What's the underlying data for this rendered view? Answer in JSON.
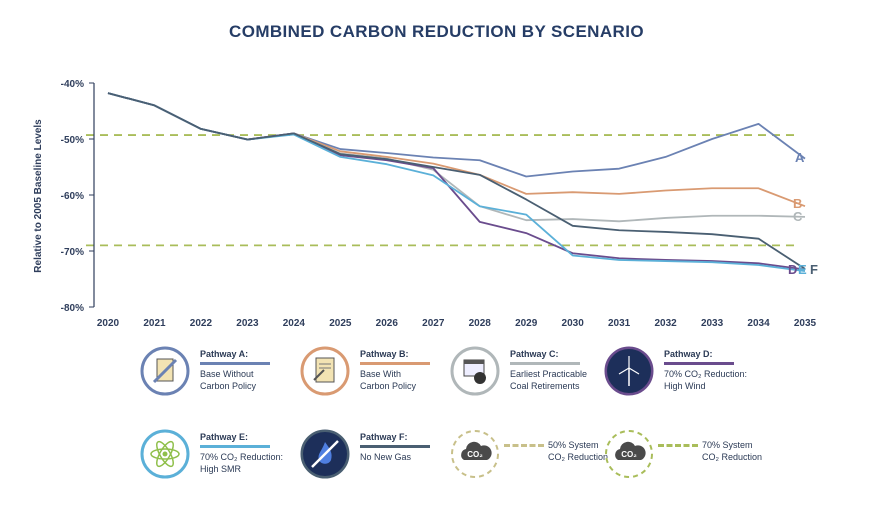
{
  "title": "COMBINED CARBON REDUCTION BY SCENARIO",
  "chart_data": {
    "type": "line",
    "title": "COMBINED CARBON REDUCTION BY SCENARIO",
    "ylabel": "Relative to 2005 Baseline Levels",
    "xlabel": "",
    "x": [
      2020,
      2021,
      2022,
      2023,
      2024,
      2025,
      2026,
      2027,
      2028,
      2029,
      2030,
      2031,
      2032,
      2033,
      2034,
      2035
    ],
    "ylim": [
      -80,
      -40
    ],
    "yticks": [
      -40,
      -50,
      -60,
      -70,
      -80
    ],
    "ytick_labels": [
      "-40%",
      "-50%",
      "-60%",
      "-70%",
      "-80%"
    ],
    "series": [
      {
        "name": "A",
        "color": "#6b82b3",
        "values": [
          -41.8,
          -44,
          -48.2,
          -50.1,
          -49,
          -51.8,
          -52.5,
          -53.3,
          -53.8,
          -56.7,
          -55.8,
          -55.3,
          -53.2,
          -50,
          -47.3,
          -53.5
        ]
      },
      {
        "name": "B",
        "color": "#d99a72",
        "values": [
          -41.8,
          -44,
          -48.2,
          -50.1,
          -49,
          -52.2,
          -53.2,
          -54.4,
          -56.4,
          -59.8,
          -59.5,
          -59.8,
          -59.2,
          -58.8,
          -58.8,
          -62
        ]
      },
      {
        "name": "C",
        "color": "#b0b7b9",
        "values": [
          -41.8,
          -44,
          -48.2,
          -50.1,
          -49,
          -52.6,
          -53.5,
          -55.5,
          -62,
          -64.5,
          -64.3,
          -64.7,
          -64.1,
          -63.7,
          -63.7,
          -63.9
        ]
      },
      {
        "name": "D",
        "color": "#6a4c8d",
        "values": [
          -41.8,
          -44,
          -48.2,
          -50.1,
          -49,
          -52.9,
          -53.8,
          -55.2,
          -64.8,
          -66.8,
          -70.4,
          -71.3,
          -71.6,
          -71.8,
          -72.2,
          -73.3
        ]
      },
      {
        "name": "E",
        "color": "#5bb0d8",
        "values": [
          -41.8,
          -44,
          -48.2,
          -50.1,
          -49.2,
          -53.2,
          -54.5,
          -56.5,
          -62,
          -63.5,
          -70.8,
          -71.6,
          -71.8,
          -72,
          -72.5,
          -73.6
        ]
      },
      {
        "name": "F",
        "color": "#4a5f72",
        "values": [
          -41.8,
          -44,
          -48.2,
          -50.1,
          -49,
          -52.7,
          -53.6,
          -55,
          -56.4,
          -60.8,
          -65.5,
          -66.3,
          -66.6,
          -67,
          -67.8,
          -73.2
        ]
      }
    ],
    "reference_lines": [
      {
        "value": -49.3,
        "color": "#a9bd5a",
        "style": "dashed"
      },
      {
        "value": -69,
        "color": "#a9bd5a",
        "style": "dashed"
      }
    ],
    "end_labels": [
      {
        "text": "A",
        "color": "#6b82b3"
      },
      {
        "text": "B",
        "color": "#d99a72"
      },
      {
        "text": "C",
        "color": "#b0b7b9"
      },
      {
        "text": "D",
        "color": "#6a4c8d"
      },
      {
        "text": "E",
        "color": "#5bb0d8"
      },
      {
        "text": "F",
        "color": "#4a5f72"
      }
    ]
  },
  "legend": [
    {
      "id": "a",
      "name": "Pathway A:",
      "desc": "Base Without\nCarbon Policy",
      "color": "#6b82b3",
      "icon": "no-carbon-policy-icon",
      "dashed": false
    },
    {
      "id": "b",
      "name": "Pathway B:",
      "desc": "Base With\nCarbon Policy",
      "color": "#d99a72",
      "icon": "carbon-policy-document-icon",
      "dashed": false
    },
    {
      "id": "c",
      "name": "Pathway C:",
      "desc": "Earliest Practicable\nCoal Retirements",
      "color": "#b0b7b9",
      "icon": "calendar-coal-icon",
      "dashed": false
    },
    {
      "id": "d",
      "name": "Pathway D:",
      "desc": "70% CO₂ Reduction:\nHigh Wind",
      "color": "#6a4c8d",
      "icon": "wind-turbine-icon",
      "dashed": false
    },
    {
      "id": "e",
      "name": "Pathway E:",
      "desc": "70% CO₂ Reduction:\nHigh SMR",
      "color": "#5bb0d8",
      "icon": "atom-icon",
      "dashed": false
    },
    {
      "id": "f",
      "name": "Pathway F:",
      "desc": "No New Gas",
      "color": "#4a5f72",
      "icon": "no-gas-flame-icon",
      "dashed": false
    },
    {
      "id": "g",
      "name": "",
      "desc": "50% System\nCO₂ Reduction",
      "color": "#c8c08a",
      "icon": "co2-cloud-icon",
      "dashed": true,
      "icon_text": "CO₂"
    },
    {
      "id": "h",
      "name": "",
      "desc": "70% System\nCO₂ Reduction",
      "color": "#a9bd5a",
      "icon": "co2-cloud-icon",
      "dashed": true,
      "icon_text": "CO₂"
    }
  ]
}
